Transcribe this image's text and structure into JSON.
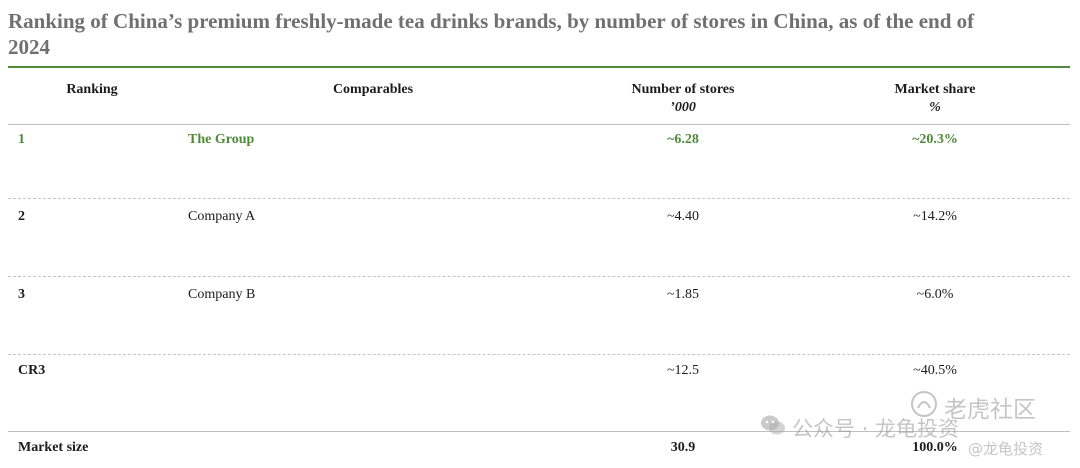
{
  "title": "Ranking of China’s premium freshly-made tea drinks brands, by number of stores in China, as of the end of 2024",
  "headers": {
    "ranking": "Ranking",
    "comparables": "Comparables",
    "stores": "Number of stores",
    "stores_unit": "’000",
    "share": "Market share",
    "share_unit": "%"
  },
  "rows": [
    {
      "rank": "1",
      "name": "The Group",
      "stores": "~6.28",
      "share": "~20.3%"
    },
    {
      "rank": "2",
      "name": "Company A",
      "stores": "~4.40",
      "share": "~14.2%"
    },
    {
      "rank": "3",
      "name": "Company B",
      "stores": "~1.85",
      "share": "~6.0%"
    },
    {
      "rank": "CR3",
      "name": "",
      "stores": "~12.5",
      "share": "~40.5%"
    },
    {
      "rank": "Market size",
      "name": "",
      "stores": "30.9",
      "share": "100.0%"
    }
  ],
  "watermark": {
    "left_text": "公众号 · 龙龟投资",
    "right_text": "老虎社区",
    "handle": "@龙龟投资"
  },
  "colors": {
    "accent": "#4f8a3a",
    "title": "#707070"
  }
}
